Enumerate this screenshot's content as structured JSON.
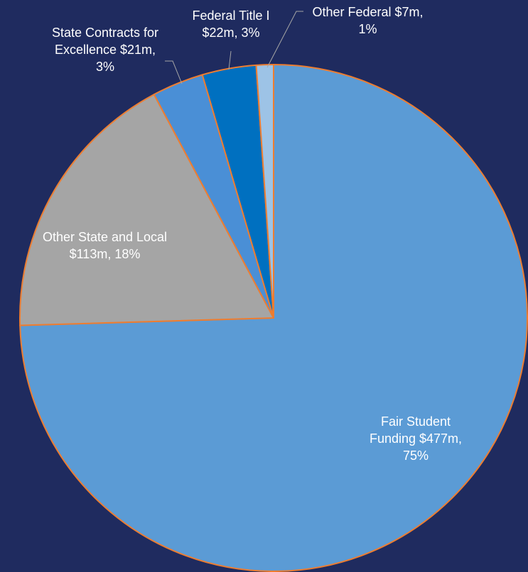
{
  "chart_data": {
    "type": "pie",
    "values": [
      477,
      113,
      21,
      22,
      7
    ],
    "value_labels": [
      "Fair Student Funding $477m, 75%",
      "Other State and Local $113m, 18%",
      "State Contracts for Excellence $21m, 3%",
      "Federal Title I $22m, 3%",
      "Other Federal $7m, 1%"
    ],
    "colors": [
      "#5b9bd5",
      "#a5a5a5",
      "#4a8fd6",
      "#0070c0",
      "#9dc3e6"
    ],
    "edge_color": "#ed7d31"
  }
}
